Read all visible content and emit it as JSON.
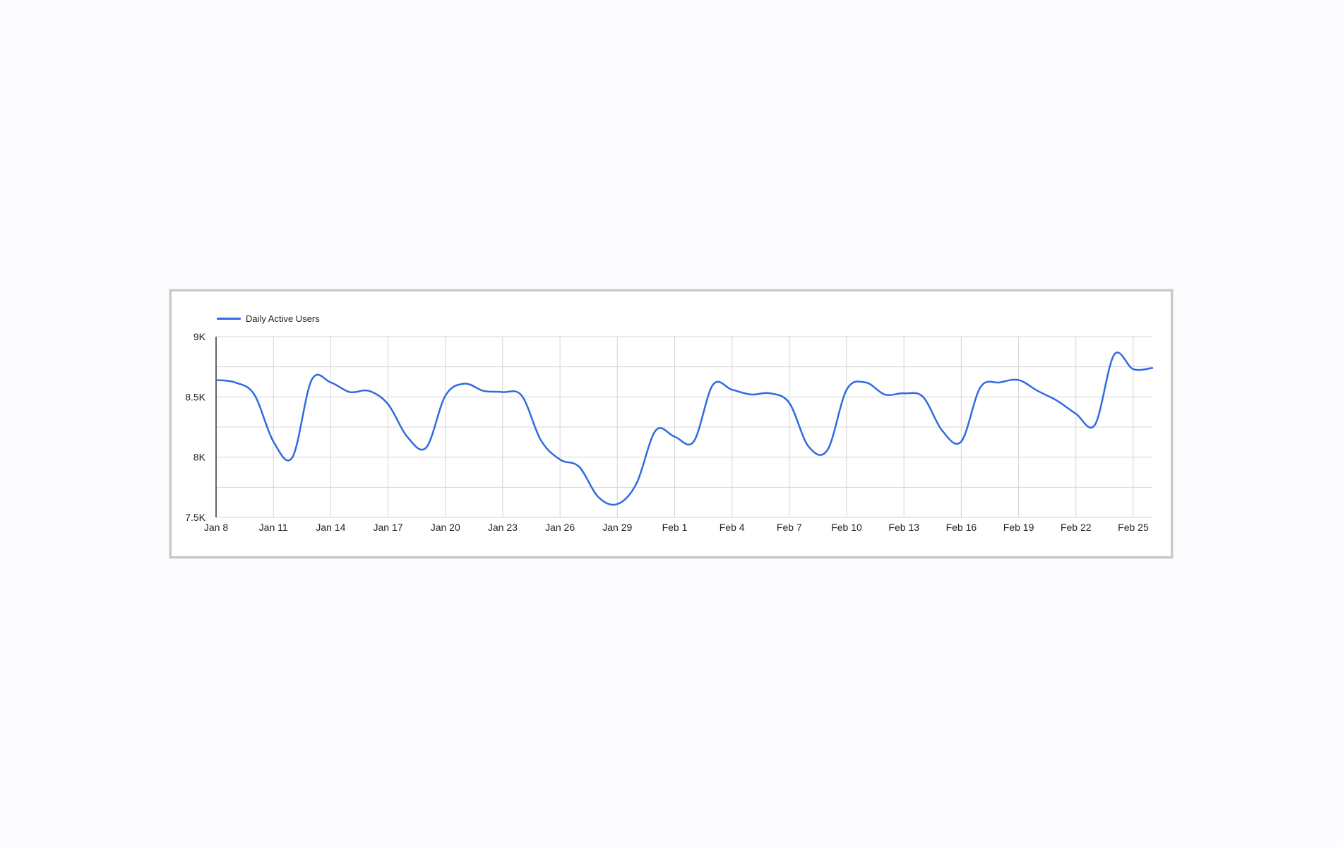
{
  "chart_data": {
    "type": "line",
    "legend": "top-left",
    "grid": true,
    "accent_color": "#2f6be0",
    "series": [
      {
        "name": "Daily Active Users",
        "color": "#2f6be0",
        "x": [
          "Jan 8",
          "Jan 9",
          "Jan 10",
          "Jan 11",
          "Jan 12",
          "Jan 13",
          "Jan 14",
          "Jan 15",
          "Jan 16",
          "Jan 17",
          "Jan 18",
          "Jan 19",
          "Jan 20",
          "Jan 21",
          "Jan 22",
          "Jan 23",
          "Jan 24",
          "Jan 25",
          "Jan 26",
          "Jan 27",
          "Jan 28",
          "Jan 29",
          "Jan 30",
          "Jan 31",
          "Feb 1",
          "Feb 2",
          "Feb 3",
          "Feb 4",
          "Feb 5",
          "Feb 6",
          "Feb 7",
          "Feb 8",
          "Feb 9",
          "Feb 10",
          "Feb 11",
          "Feb 12",
          "Feb 13",
          "Feb 14",
          "Feb 15",
          "Feb 16",
          "Feb 17",
          "Feb 18",
          "Feb 19",
          "Feb 20",
          "Feb 21",
          "Feb 22",
          "Feb 23",
          "Feb 24",
          "Feb 25",
          "Feb 26"
        ],
        "values": [
          8640,
          8620,
          8520,
          8130,
          8000,
          8640,
          8620,
          8540,
          8550,
          8440,
          8170,
          8080,
          8510,
          8610,
          8550,
          8540,
          8510,
          8140,
          7980,
          7920,
          7670,
          7610,
          7780,
          8220,
          8170,
          8130,
          8600,
          8560,
          8520,
          8530,
          8450,
          8090,
          8060,
          8560,
          8620,
          8520,
          8530,
          8500,
          8220,
          8130,
          8580,
          8620,
          8640,
          8550,
          8470,
          8360,
          8270,
          8850,
          8730,
          8740
        ]
      }
    ],
    "x_ticks": [
      "Jan 8",
      "Jan 11",
      "Jan 14",
      "Jan 17",
      "Jan 20",
      "Jan 23",
      "Jan 26",
      "Jan 29",
      "Feb 1",
      "Feb 4",
      "Feb 7",
      "Feb 10",
      "Feb 13",
      "Feb 16",
      "Feb 19",
      "Feb 22",
      "Feb 25"
    ],
    "y_ticks": [
      {
        "value": 7500,
        "label": "7.5K"
      },
      {
        "value": 8000,
        "label": "8K"
      },
      {
        "value": 8500,
        "label": "8.5K"
      },
      {
        "value": 9000,
        "label": "9K"
      }
    ],
    "ylim": [
      7500,
      9000
    ],
    "y_gridlines": [
      7500,
      7750,
      8000,
      8250,
      8500,
      8750,
      9000
    ]
  }
}
